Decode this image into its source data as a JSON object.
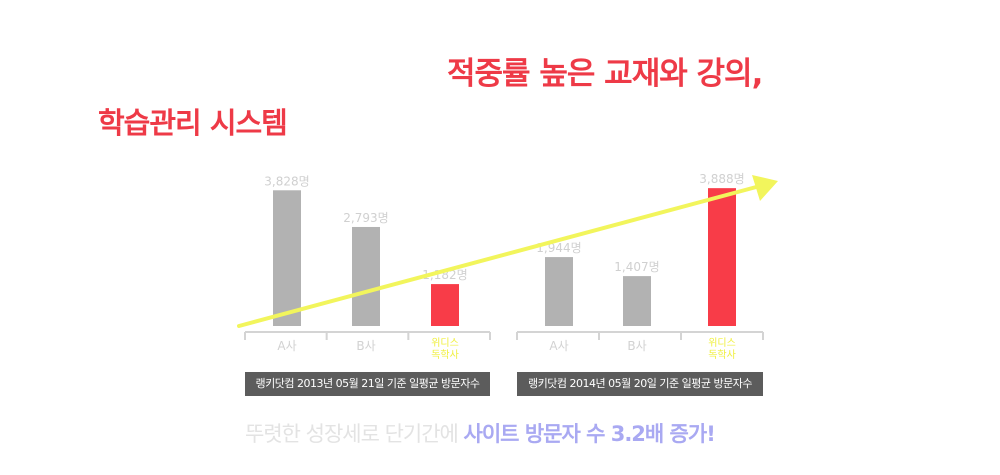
{
  "headline_top": "적중률 높은 교재와 강의,",
  "headline_left": "학습관리 시스템",
  "chart_data": [
    {
      "type": "bar",
      "categories": [
        "A사",
        "B사",
        "위디스\n독학사"
      ],
      "values": [
        3828,
        2793,
        1182
      ],
      "value_labels": [
        "3,828명",
        "2,793명",
        "1,182명"
      ],
      "caption": "랭키닷컴 2013년 05월 21일 기준 일평균 방문자수",
      "ylim": [
        0,
        5500
      ]
    },
    {
      "type": "bar",
      "categories": [
        "A사",
        "B사",
        "위디스\n독학사"
      ],
      "values": [
        1944,
        1407,
        3888
      ],
      "value_labels": [
        "1,944명",
        "1,407명",
        "3,888명"
      ],
      "caption": "랭키닷컴 2014년 05월 20일 기준 일평균 방문자수",
      "ylim": [
        0,
        5500
      ]
    }
  ],
  "colors": {
    "bar_competitor": "#b2b2b2",
    "bar_highlight": "#f83c48",
    "arrow": "#f2f55c",
    "highlight_label": "#f0f040",
    "competitor_label": "#d2d2d2",
    "value_label": "#d0d0d0",
    "axis": "#d4d4d4"
  },
  "tagline": {
    "prefix": "뚜렷한 성장세로 단기간에 ",
    "highlight": "사이트 방문자 수 3.2배 증가!"
  }
}
